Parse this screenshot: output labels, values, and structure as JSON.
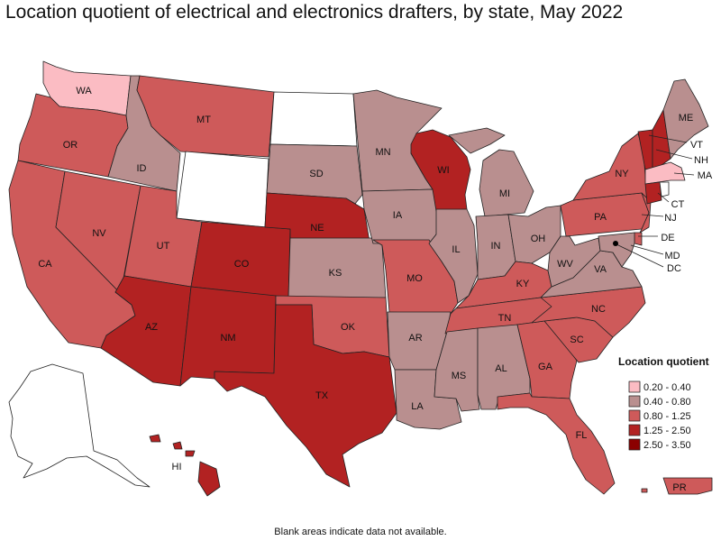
{
  "title": "Location quotient of electrical and electronics drafters, by state, May 2022",
  "footnote": "Blank areas indicate data not available.",
  "colors": {
    "c1": "#fbbcc3",
    "c2": "#b98f8f",
    "c3": "#ce5a5a",
    "c4": "#b22222",
    "c5": "#8b0000",
    "na": "#ffffff"
  },
  "legend": {
    "title": "Location quotient",
    "items": [
      {
        "label": "0.20 - 0.40",
        "color": "#fbbcc3"
      },
      {
        "label": "0.40 - 0.80",
        "color": "#b98f8f"
      },
      {
        "label": "0.80 - 1.25",
        "color": "#ce5a5a"
      },
      {
        "label": "1.25 - 2.50",
        "color": "#b22222"
      },
      {
        "label": "2.50 - 3.50",
        "color": "#8b0000"
      }
    ]
  },
  "states": {
    "WA": "0.20 - 0.40",
    "OR": "0.80 - 1.25",
    "CA": "0.80 - 1.25",
    "NV": "0.80 - 1.25",
    "ID": "0.40 - 0.80",
    "MT": "0.80 - 1.25",
    "UT": "0.80 - 1.25",
    "AZ": "1.25 - 2.50",
    "CO": "1.25 - 2.50",
    "NM": "1.25 - 2.50",
    "TX": "1.25 - 2.50",
    "NE": "1.25 - 2.50",
    "SD": "0.40 - 0.80",
    "KS": "0.40 - 0.80",
    "OK": "0.80 - 1.25",
    "MN": "0.40 - 0.80",
    "IA": "0.40 - 0.80",
    "MO": "0.80 - 1.25",
    "AR": "0.40 - 0.80",
    "LA": "0.40 - 0.80",
    "WI": "1.25 - 2.50",
    "IL": "0.40 - 0.80",
    "MI": "0.40 - 0.80",
    "IN": "0.40 - 0.80",
    "OH": "0.40 - 0.80",
    "KY": "0.80 - 1.25",
    "TN": "0.80 - 1.25",
    "MS": "0.40 - 0.80",
    "AL": "0.40 - 0.80",
    "GA": "0.80 - 1.25",
    "FL": "0.80 - 1.25",
    "SC": "0.80 - 1.25",
    "NC": "0.80 - 1.25",
    "VA": "0.40 - 0.80",
    "WV": "0.40 - 0.80",
    "PA": "0.80 - 1.25",
    "NY": "0.80 - 1.25",
    "ME": "0.40 - 0.80",
    "NH": "1.25 - 2.50",
    "VT": "1.25 - 2.50",
    "MA": "0.20 - 0.40",
    "CT": "1.25 - 2.50",
    "NJ": "0.80 - 1.25",
    "DE": "0.80 - 1.25",
    "MD": "0.40 - 0.80",
    "HI": "1.25 - 2.50",
    "PR": "0.80 - 1.25"
  },
  "labels": {
    "WA": "WA",
    "OR": "OR",
    "CA": "CA",
    "NV": "NV",
    "ID": "ID",
    "MT": "MT",
    "UT": "UT",
    "AZ": "AZ",
    "CO": "CO",
    "NM": "NM",
    "TX": "TX",
    "NE": "NE",
    "SD": "SD",
    "KS": "KS",
    "OK": "OK",
    "MN": "MN",
    "IA": "IA",
    "MO": "MO",
    "AR": "AR",
    "LA": "LA",
    "WI": "WI",
    "IL": "IL",
    "MI": "MI",
    "IN": "IN",
    "OH": "OH",
    "KY": "KY",
    "TN": "TN",
    "MS": "MS",
    "AL": "AL",
    "GA": "GA",
    "FL": "FL",
    "SC": "SC",
    "NC": "NC",
    "VA": "VA",
    "WV": "WV",
    "PA": "PA",
    "NY": "NY",
    "ME": "ME",
    "VT": "VT",
    "NH": "NH",
    "MA": "MA",
    "CT": "CT",
    "NJ": "NJ",
    "DE": "DE",
    "MD": "MD",
    "DC": "DC",
    "HI": "HI",
    "PR": "PR"
  }
}
